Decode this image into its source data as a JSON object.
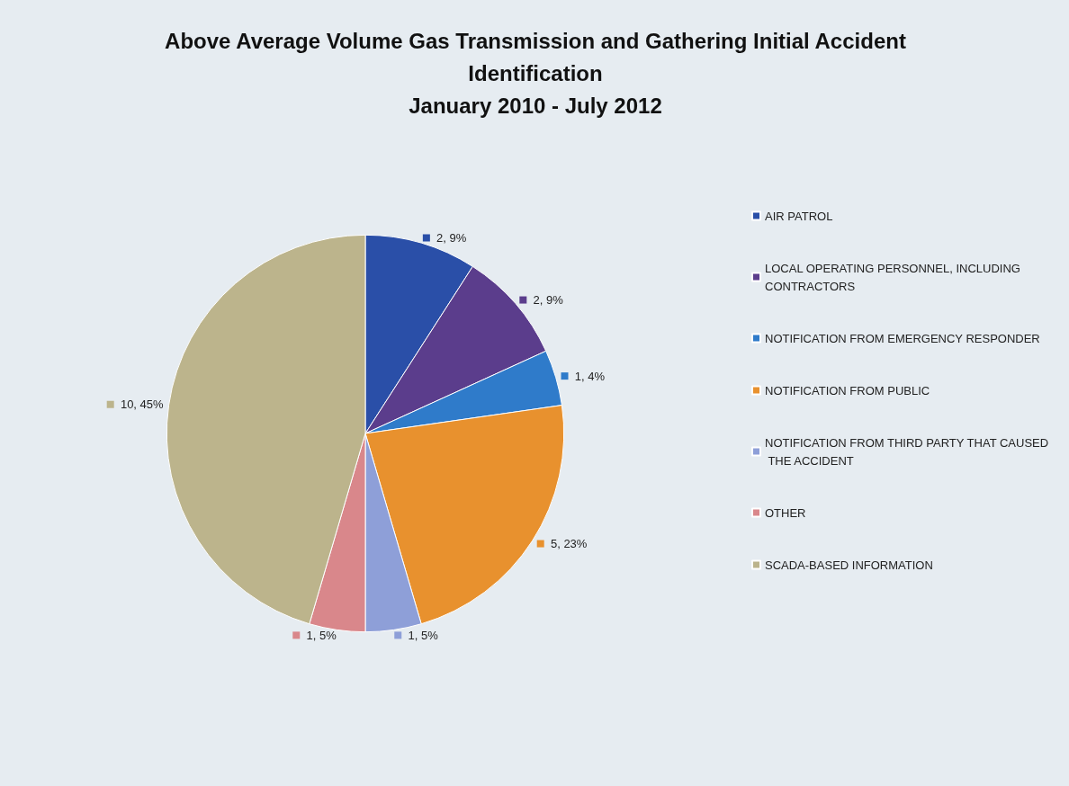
{
  "chart_data": {
    "type": "pie",
    "title": "Above Average Volume Gas Transmission and Gathering Initial Accident\nIdentification\nJanuary 2010 - July 2012",
    "categories": [
      "AIR PATROL",
      "LOCAL OPERATING PERSONNEL, INCLUDING CONTRACTORS",
      "NOTIFICATION FROM EMERGENCY RESPONDER",
      "NOTIFICATION FROM PUBLIC",
      "NOTIFICATION FROM THIRD PARTY THAT CAUSED THE ACCIDENT",
      "OTHER",
      "SCADA-BASED INFORMATION"
    ],
    "values": [
      2,
      2,
      1,
      5,
      1,
      1,
      10
    ],
    "value_labels": [
      "2, 9%",
      "2, 9%",
      "1, 4%",
      "5, 23%",
      "1, 5%",
      "1, 5%",
      "10, 45%"
    ],
    "colors": [
      "#2a4fa8",
      "#5b3d8c",
      "#2f7bca",
      "#e8912e",
      "#8e9fd8",
      "#d9878b",
      "#bcb48c"
    ],
    "legend": "right"
  }
}
